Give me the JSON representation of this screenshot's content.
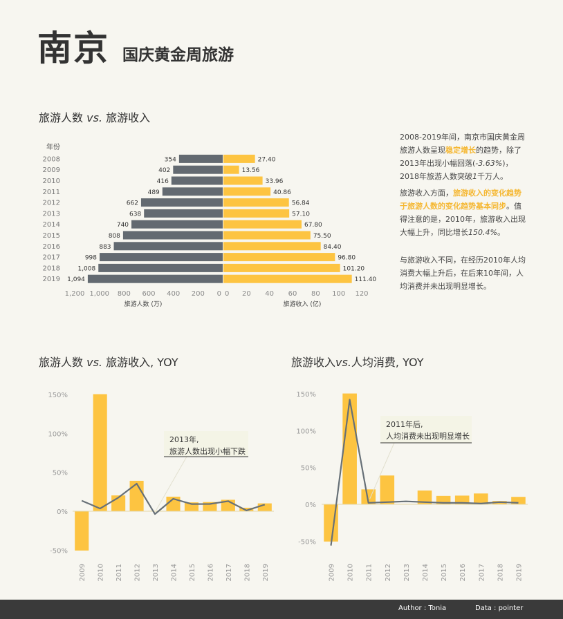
{
  "header": {
    "title": "南京",
    "subtitle": "国庆黄金周旅游"
  },
  "colors": {
    "visitors": "#636a71",
    "revenue": "#fdc441",
    "line": "#677077",
    "highlight": "#f5b731",
    "background": "#f7f6f0"
  },
  "section1": {
    "title_a": "旅游人数 ",
    "title_vs": "vs.",
    "title_b": " 旅游收入",
    "notes": [
      {
        "parts": [
          {
            "t": "2008-2019年间，南京市国庆黄金周旅游人数呈现"
          },
          {
            "t": "稳定增长",
            "s": "hl"
          },
          {
            "t": "的趋势，除了2013年出现小幅回落("
          },
          {
            "t": "-3.63%",
            "s": "it"
          },
          {
            "t": ")，2018年旅游人数突破"
          },
          {
            "t": "1",
            "s": "it"
          },
          {
            "t": "千万人。"
          }
        ]
      },
      {
        "parts": [
          {
            "t": "旅游收入方面，"
          },
          {
            "t": "旅游收入的变化趋势于旅游人数的变化趋势基本同步",
            "s": "hl"
          },
          {
            "t": "。值得注意的是，2010年，旅游收入出现大幅上升，同比增长"
          },
          {
            "t": "150.4%",
            "s": "it"
          },
          {
            "t": "。"
          }
        ]
      },
      {
        "parts": [
          {
            "t": "与旅游收入不同，在经历2010年人均消费大幅上升后，在后来10年间，人均消费并未出现明显增长。"
          }
        ]
      }
    ]
  },
  "section2": {
    "title_a": "旅游人数 ",
    "title_vs": "vs.",
    "title_b": " 旅游收入, YOY"
  },
  "section3": {
    "title_a": "旅游收入",
    "title_vs": "vs.",
    "title_b": "人均消费, YOY"
  },
  "footer": {
    "author": "Author : Tonia",
    "data": "Data : pointer"
  },
  "chart_data": [
    {
      "type": "bar",
      "orientation": "horizontal-butterfly",
      "category_label": "年份",
      "categories": [
        "2008",
        "2009",
        "2010",
        "2011",
        "2012",
        "2013",
        "2014",
        "2015",
        "2016",
        "2017",
        "2018",
        "2019"
      ],
      "series": [
        {
          "name": "旅游人数 (万)",
          "values": [
            354,
            402,
            416,
            489,
            662,
            638,
            740,
            808,
            883,
            998,
            1008,
            1094
          ],
          "labels": [
            "354",
            "402",
            "416",
            "489",
            "662",
            "638",
            "740",
            "808",
            "883",
            "998",
            "1,008",
            "1,094"
          ]
        },
        {
          "name": "旅游收入 (亿)",
          "values": [
            27.4,
            13.56,
            33.96,
            40.86,
            56.84,
            57.1,
            67.8,
            75.5,
            84.4,
            96.8,
            101.2,
            111.4
          ],
          "labels": [
            "27.40",
            "13.56",
            "33.96",
            "40.86",
            "56.84",
            "57.10",
            "67.80",
            "75.50",
            "84.40",
            "96.80",
            "101.20",
            "111.40"
          ]
        }
      ],
      "left_axis": {
        "label": "旅游人数 (万)",
        "ticks": [
          1200,
          1000,
          800,
          600,
          400,
          200,
          0
        ],
        "tick_labels": [
          "1,200",
          "1,000",
          "800",
          "600",
          "400",
          "200",
          "0"
        ]
      },
      "right_axis": {
        "label": "旅游收入 (亿)",
        "ticks": [
          0,
          20,
          40,
          60,
          80,
          100,
          120
        ],
        "tick_labels": [
          "0",
          "20",
          "40",
          "60",
          "80",
          "100",
          "120"
        ]
      }
    },
    {
      "type": "bar",
      "categories": [
        "2009",
        "2010",
        "2011",
        "2012",
        "2013",
        "2014",
        "2015",
        "2016",
        "2017",
        "2018",
        "2019"
      ],
      "bars": {
        "values": [
          -50.5,
          150.4,
          20.3,
          39.1,
          0.5,
          18.7,
          11.4,
          11.8,
          14.7,
          4.5,
          10.1
        ]
      },
      "line": {
        "values": [
          13.6,
          3.5,
          17.5,
          35.4,
          -3.6,
          16.0,
          9.2,
          9.3,
          13.0,
          1.0,
          8.5
        ]
      },
      "y_ticks": [
        -50,
        0,
        50,
        100,
        150
      ],
      "y_tick_labels": [
        "-50%",
        "0%",
        "50%",
        "100%",
        "150%"
      ],
      "ylim": [
        -55,
        155
      ],
      "annotation": {
        "lines": [
          "2013年,",
          "旅游人数出现小幅下跌"
        ],
        "target": "2013"
      }
    },
    {
      "type": "bar",
      "categories": [
        "2009",
        "2010",
        "2011",
        "2012",
        "2013",
        "2014",
        "2015",
        "2016",
        "2017",
        "2018",
        "2019"
      ],
      "bars": {
        "values": [
          -50.5,
          150.4,
          20.3,
          39.1,
          0.5,
          18.7,
          11.4,
          11.8,
          14.7,
          4.5,
          10.1
        ]
      },
      "line": {
        "values": [
          -56,
          142,
          2,
          3,
          4,
          3,
          2,
          2,
          1,
          3,
          2
        ]
      },
      "y_ticks": [
        -50,
        0,
        50,
        100,
        150
      ],
      "y_tick_labels": [
        "-50%",
        "0%",
        "50%",
        "100%",
        "150%"
      ],
      "ylim": [
        -58,
        155
      ],
      "annotation": {
        "lines": [
          "2011年后,",
          "人均消费未出现明显增长"
        ],
        "target": "2011"
      }
    }
  ]
}
